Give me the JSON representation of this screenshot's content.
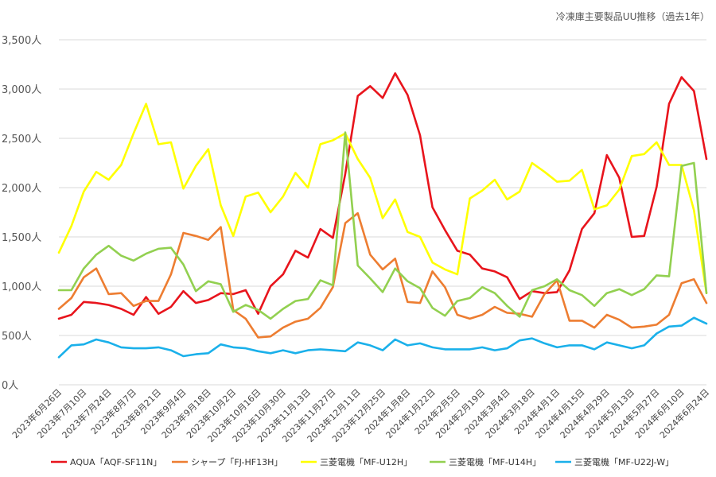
{
  "chart_data": {
    "type": "line",
    "title": "冷凍庫主要製品UU推移（過去1年）",
    "y_ticks": [
      "0人",
      "500人",
      "1,000人",
      "1,500人",
      "2,000人",
      "2,500人",
      "3,000人",
      "3,500人"
    ],
    "ylim": [
      0,
      3500
    ],
    "grid": true,
    "legend_position": "bottom",
    "x_tick_labels": [
      "2023年6月26日",
      "2023年7月10日",
      "2023年7月24日",
      "2023年8月7日",
      "2023年8月21日",
      "2023年9月4日",
      "2023年9月18日",
      "2023年10月2日",
      "2023年10月16日",
      "2023年10月30日",
      "2023年11月13日",
      "2023年11月27日",
      "2023年12月11日",
      "2023年12月25日",
      "2024年1月8日",
      "2024年1月22日",
      "2024年2月5日",
      "2024年2月19日",
      "2024年3月4日",
      "2024年3月18日",
      "2024年4月1日",
      "2024年4月15日",
      "2024年4月29日",
      "2024年5月13日",
      "2024年5月27日",
      "2024年6月10日",
      "2024年6月24日"
    ],
    "series": [
      {
        "name": "AQUA「AQF-SF11N」",
        "color": "#e8141c",
        "values": [
          670,
          710,
          840,
          830,
          810,
          770,
          710,
          890,
          720,
          790,
          950,
          830,
          860,
          930,
          920,
          960,
          720,
          1000,
          1120,
          1360,
          1290,
          1580,
          1490,
          2140,
          2930,
          3030,
          2910,
          3160,
          2940,
          2530,
          1800,
          1570,
          1360,
          1320,
          1180,
          1150,
          1090,
          870,
          950,
          930,
          940,
          1160,
          1580,
          1740,
          2330,
          2100,
          1500,
          1510,
          2010,
          2850,
          3120,
          2980,
          2290
        ]
      },
      {
        "name": "シャープ「FJ-HF13H」",
        "color": "#ed7d31",
        "values": [
          770,
          880,
          1090,
          1180,
          920,
          930,
          800,
          850,
          850,
          1120,
          1540,
          1510,
          1470,
          1600,
          760,
          670,
          480,
          490,
          580,
          640,
          670,
          780,
          990,
          1640,
          1740,
          1320,
          1170,
          1280,
          840,
          830,
          1150,
          990,
          710,
          670,
          710,
          790,
          730,
          720,
          690,
          920,
          1060,
          650,
          650,
          580,
          710,
          660,
          580,
          590,
          610,
          710,
          1030,
          1070,
          830
        ]
      },
      {
        "name": "三菱電機「MF-U12H」",
        "color": "#ffff00",
        "values": [
          1340,
          1610,
          1960,
          2160,
          2080,
          2230,
          2550,
          2850,
          2440,
          2460,
          1990,
          2220,
          2390,
          1820,
          1510,
          1910,
          1950,
          1750,
          1910,
          2150,
          2000,
          2440,
          2480,
          2550,
          2290,
          2100,
          1690,
          1880,
          1550,
          1500,
          1240,
          1170,
          1120,
          1890,
          1970,
          2080,
          1880,
          1960,
          2250,
          2160,
          2060,
          2070,
          2180,
          1780,
          1820,
          1980,
          2320,
          2340,
          2460,
          2230,
          2230,
          1770,
          930
        ]
      },
      {
        "name": "三菱電機「MF-U14H」",
        "color": "#92d050",
        "values": [
          960,
          960,
          1180,
          1320,
          1410,
          1310,
          1260,
          1330,
          1380,
          1390,
          1220,
          950,
          1050,
          1020,
          740,
          810,
          760,
          670,
          770,
          850,
          870,
          1060,
          1010,
          2560,
          1210,
          1080,
          940,
          1180,
          1050,
          980,
          780,
          700,
          850,
          880,
          990,
          930,
          800,
          690,
          960,
          1000,
          1070,
          960,
          910,
          800,
          930,
          970,
          910,
          970,
          1110,
          1100,
          2220,
          2250,
          930
        ]
      },
      {
        "name": "三菱電機「MF-U22J-W」",
        "color": "#1ab0ea",
        "values": [
          280,
          400,
          410,
          460,
          430,
          380,
          370,
          370,
          380,
          350,
          290,
          310,
          320,
          410,
          380,
          370,
          340,
          320,
          350,
          320,
          350,
          360,
          350,
          340,
          430,
          400,
          350,
          460,
          400,
          420,
          380,
          360,
          360,
          360,
          380,
          350,
          370,
          450,
          470,
          420,
          380,
          400,
          400,
          360,
          430,
          400,
          370,
          400,
          520,
          590,
          600,
          680,
          620
        ]
      }
    ]
  }
}
